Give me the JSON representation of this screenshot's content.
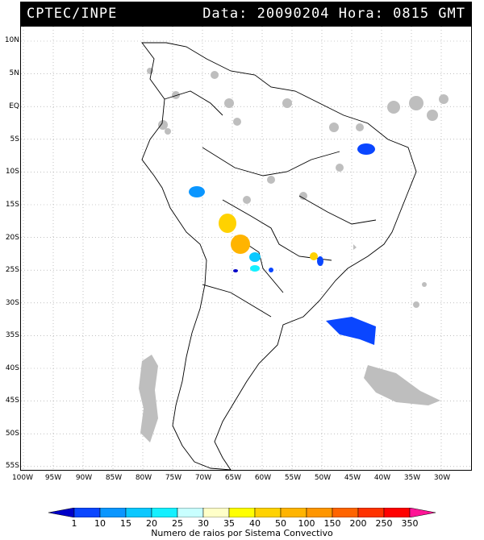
{
  "header": {
    "source": "CPTEC/INPE",
    "datetime": "Data: 20090204 Hora: 0815 GMT"
  },
  "latitude_labels": [
    "10N",
    "5N",
    "EQ",
    "5S",
    "10S",
    "15S",
    "20S",
    "25S",
    "30S",
    "35S",
    "40S",
    "45S",
    "50S",
    "55S"
  ],
  "longitude_labels": [
    "100W",
    "95W",
    "90W",
    "85W",
    "80W",
    "75W",
    "70W",
    "65W",
    "60W",
    "55W",
    "50W",
    "45W",
    "40W",
    "35W",
    "30W"
  ],
  "colorbar": {
    "labels": [
      "1",
      "10",
      "15",
      "20",
      "25",
      "30",
      "35",
      "40",
      "50",
      "100",
      "150",
      "200",
      "250",
      "350"
    ],
    "colors": [
      "#0000c8",
      "#0a46ff",
      "#0a96ff",
      "#0ac8ff",
      "#14f0ff",
      "#c8ffff",
      "#ffffc8",
      "#ffff00",
      "#ffd200",
      "#ffb400",
      "#ff9600",
      "#ff6400",
      "#ff3200",
      "#ff0000",
      "#ff1496"
    ],
    "title": "Numero de raios por Sistema Convectivo"
  },
  "colors": {
    "cloud_gray": "#bebebe",
    "coast": "#000000",
    "grid": "#9a9a9a"
  }
}
